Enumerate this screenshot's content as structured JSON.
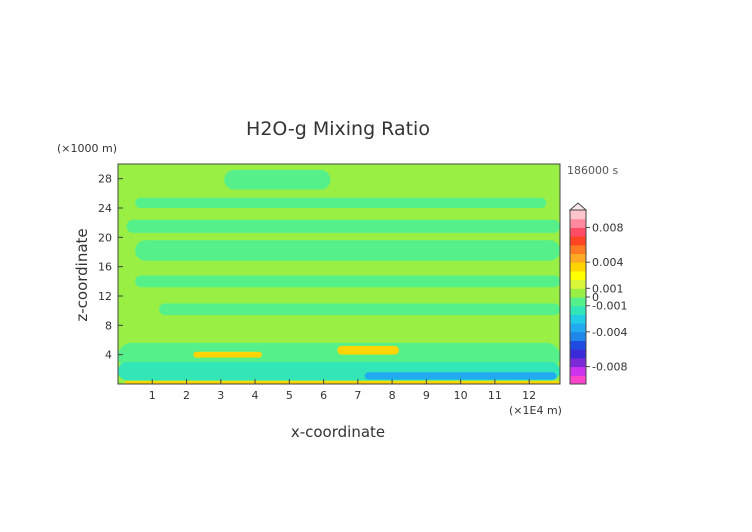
{
  "chart_data": {
    "type": "heatmap",
    "title": "H2O-g Mixing Ratio",
    "xlabel": "x-coordinate",
    "ylabel": "z-coordinate",
    "x_unit": "(×1E4 m)",
    "y_unit": "(×1000 m)",
    "time_label": "186000 s",
    "xlim": [
      0,
      12.9
    ],
    "ylim": [
      0,
      30
    ],
    "x_ticks": [
      1,
      2,
      3,
      4,
      5,
      6,
      7,
      8,
      9,
      10,
      11,
      12
    ],
    "y_ticks": [
      4,
      8,
      12,
      16,
      20,
      24,
      28
    ],
    "grid": false,
    "colorbar": {
      "tick_labels": [
        "0.008",
        "0.004",
        "0.001",
        "0",
        "-0.001",
        "-0.004",
        "-0.008"
      ],
      "tick_values": [
        0.008,
        0.004,
        0.001,
        0,
        -0.001,
        -0.004,
        -0.008
      ],
      "vmin": -0.01,
      "vmax": 0.01,
      "colors": [
        "#ff44cc",
        "#cc33ee",
        "#7a2ad6",
        "#3a2ad8",
        "#1f4be0",
        "#1f86ea",
        "#22aaf0",
        "#22cce6",
        "#33e6b8",
        "#55f08a",
        "#9aef44",
        "#d8f53a",
        "#ffff00",
        "#ffd400",
        "#ffaa22",
        "#ff7a22",
        "#ff4422",
        "#ff4d66",
        "#ff8aa0",
        "#ffc4cc"
      ]
    },
    "background_value": 0,
    "regions": [
      {
        "label": "upper green band",
        "value": -0.0004,
        "x": [
          0.25,
          12.9
        ],
        "z": [
          20.6,
          22.4
        ]
      },
      {
        "label": "green band 24 km",
        "value": -0.0004,
        "x": [
          0.5,
          12.5
        ],
        "z": [
          24.0,
          25.4
        ]
      },
      {
        "label": "green band 18 km",
        "value": -0.0004,
        "x": [
          0.5,
          12.9
        ],
        "z": [
          16.8,
          19.6
        ]
      },
      {
        "label": "green patch top",
        "value": -0.0004,
        "x": [
          3.1,
          6.2
        ],
        "z": [
          26.5,
          29.2
        ]
      },
      {
        "label": "green band 14 km",
        "value": -0.0004,
        "x": [
          0.5,
          12.9
        ],
        "z": [
          13.2,
          14.8
        ]
      },
      {
        "label": "green band 10 km",
        "value": -0.0004,
        "x": [
          1.2,
          12.9
        ],
        "z": [
          9.4,
          11.0
        ]
      },
      {
        "label": "green band low",
        "value": -0.0004,
        "x": [
          0,
          12.9
        ],
        "z": [
          2.0,
          5.6
        ]
      },
      {
        "label": "cyan band",
        "value": -0.002,
        "x": [
          0,
          12.9
        ],
        "z": [
          0.5,
          3.0
        ]
      },
      {
        "label": "blue core",
        "value": -0.004,
        "x": [
          7.2,
          12.8
        ],
        "z": [
          0.6,
          1.6
        ]
      },
      {
        "label": "orange pocket left",
        "value": 0.003,
        "x": [
          2.2,
          4.2
        ],
        "z": [
          3.6,
          4.4
        ]
      },
      {
        "label": "orange pocket right",
        "value": 0.003,
        "x": [
          6.4,
          8.2
        ],
        "z": [
          4.0,
          5.2
        ]
      },
      {
        "label": "orange surface",
        "value": 0.003,
        "x": [
          0.2,
          12.9
        ],
        "z": [
          0.0,
          0.4
        ]
      }
    ]
  }
}
